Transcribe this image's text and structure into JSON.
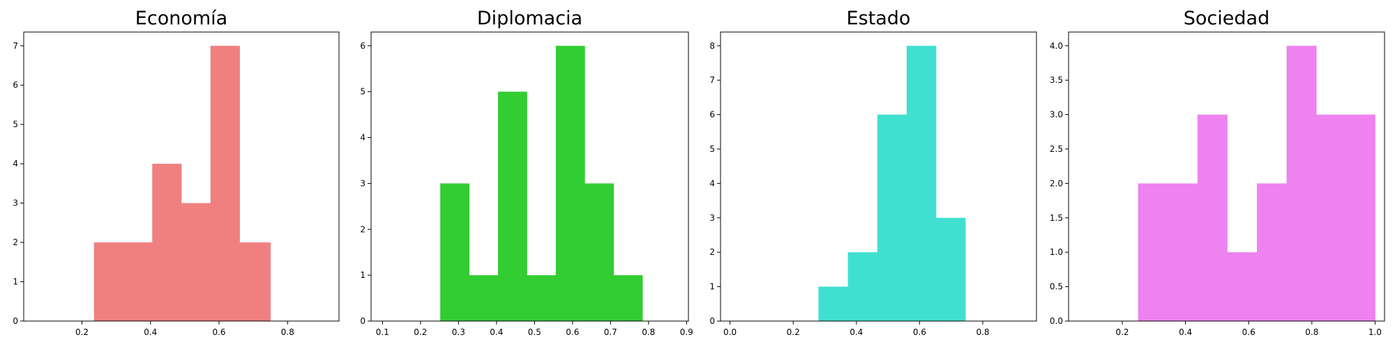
{
  "chart_data": [
    {
      "type": "bar",
      "title": "Economía",
      "color": "#f08080",
      "xlim": [
        0.03,
        0.95
      ],
      "ylim": [
        0,
        7.35
      ],
      "xticks": [
        0.2,
        0.4,
        0.6,
        0.8
      ],
      "xtick_labels": [
        "0.2",
        "0.4",
        "0.6",
        "0.8"
      ],
      "yticks": [
        0,
        1,
        2,
        3,
        4,
        5,
        6,
        7
      ],
      "ytick_labels": [
        "0",
        "1",
        "2",
        "3",
        "4",
        "5",
        "6",
        "7"
      ],
      "bins": [
        [
          0.235,
          0.32
        ],
        [
          0.32,
          0.405
        ],
        [
          0.405,
          0.49
        ],
        [
          0.49,
          0.575
        ],
        [
          0.575,
          0.66
        ],
        [
          0.66,
          0.75
        ]
      ],
      "values": [
        2,
        2,
        4,
        3,
        7,
        2
      ]
    },
    {
      "type": "bar",
      "title": "Diplomacia",
      "color": "#32cd32",
      "xlim": [
        0.07,
        0.905
      ],
      "ylim": [
        0,
        6.3
      ],
      "xticks": [
        0.1,
        0.2,
        0.3,
        0.4,
        0.5,
        0.6,
        0.7,
        0.8,
        0.9
      ],
      "xtick_labels": [
        "0.1",
        "0.2",
        "0.3",
        "0.4",
        "0.5",
        "0.6",
        "0.7",
        "0.8",
        "0.9"
      ],
      "yticks": [
        0,
        1,
        2,
        3,
        4,
        5,
        6
      ],
      "ytick_labels": [
        "0",
        "1",
        "2",
        "3",
        "4",
        "5",
        "6"
      ],
      "bins": [
        [
          0.252,
          0.328
        ],
        [
          0.328,
          0.404
        ],
        [
          0.404,
          0.48
        ],
        [
          0.48,
          0.556
        ],
        [
          0.556,
          0.632
        ],
        [
          0.632,
          0.708
        ],
        [
          0.708,
          0.784
        ]
      ],
      "values": [
        3,
        1,
        5,
        1,
        6,
        3,
        1
      ]
    },
    {
      "type": "bar",
      "title": "Estado",
      "color": "#40e0d0",
      "xlim": [
        -0.03,
        0.97
      ],
      "ylim": [
        0,
        8.4
      ],
      "xticks": [
        0.0,
        0.2,
        0.4,
        0.6,
        0.8
      ],
      "xtick_labels": [
        "0.0",
        "0.2",
        "0.4",
        "0.6",
        "0.8"
      ],
      "yticks": [
        0,
        1,
        2,
        3,
        4,
        5,
        6,
        7,
        8
      ],
      "ytick_labels": [
        "0",
        "1",
        "2",
        "3",
        "4",
        "5",
        "6",
        "7",
        "8"
      ],
      "bins": [
        [
          0.28,
          0.373
        ],
        [
          0.373,
          0.466
        ],
        [
          0.466,
          0.559
        ],
        [
          0.559,
          0.652
        ],
        [
          0.652,
          0.745
        ]
      ],
      "values": [
        1,
        2,
        6,
        8,
        3
      ]
    },
    {
      "type": "bar",
      "title": "Sociedad",
      "color": "#ee82ee",
      "xlim": [
        0.03,
        1.03
      ],
      "ylim": [
        0,
        4.2
      ],
      "xticks": [
        0.2,
        0.4,
        0.6,
        0.8,
        1.0
      ],
      "xtick_labels": [
        "0.2",
        "0.4",
        "0.6",
        "0.8",
        "1.0"
      ],
      "yticks": [
        0.0,
        0.5,
        1.0,
        1.5,
        2.0,
        2.5,
        3.0,
        3.5,
        4.0
      ],
      "ytick_labels": [
        "0.0",
        "0.5",
        "1.0",
        "1.5",
        "2.0",
        "2.5",
        "3.0",
        "3.5",
        "4.0"
      ],
      "bins": [
        [
          0.25,
          0.344
        ],
        [
          0.344,
          0.438
        ],
        [
          0.438,
          0.532
        ],
        [
          0.532,
          0.626
        ],
        [
          0.626,
          0.72
        ],
        [
          0.72,
          0.814
        ],
        [
          0.814,
          0.908
        ],
        [
          0.908,
          1.0
        ]
      ],
      "values": [
        2,
        2,
        3,
        1,
        2,
        4,
        3,
        3
      ]
    }
  ]
}
